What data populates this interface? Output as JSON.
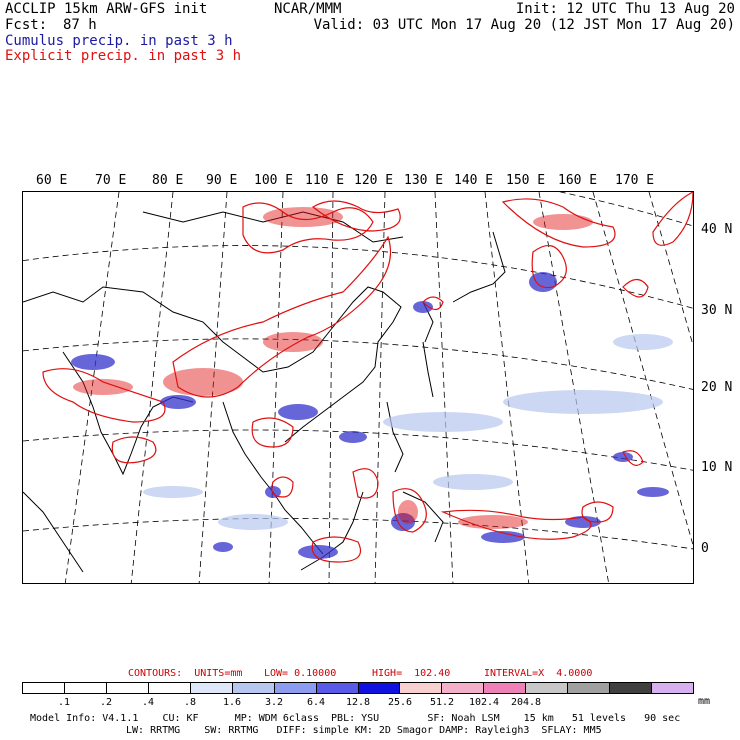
{
  "header": {
    "model": "ACCLIP 15km ARW-GFS init",
    "fcst_label": "Fcst:",
    "fcst_value": "87 h",
    "center": "NCAR/MMM",
    "init": "Init: 12 UTC Thu 13 Aug 20",
    "valid": "Valid: 03 UTC Mon 17 Aug 20 (12 JST Mon 17 Aug 20)",
    "legend_cumulus": "Cumulus precip. in past 3 h",
    "legend_explicit": "Explicit precip. in past 3 h",
    "legend_cumulus_color": "#1a1aa0",
    "legend_explicit_color": "#e01010"
  },
  "map": {
    "lon_labels": [
      "60 E",
      "70 E",
      "80 E",
      "90 E",
      "100 E",
      "110 E",
      "120 E",
      "130 E",
      "140 E",
      "150 E",
      "160 E",
      "170 E"
    ],
    "lat_labels": [
      "40 N",
      "30 N",
      "20 N",
      "10 N",
      "0"
    ]
  },
  "contours_line": {
    "contours": "CONTOURS:  UNITS=mm",
    "low": "LOW= 0.10000",
    "high": "HIGH=  102.40",
    "interval": "INTERVAL=X  4.0000",
    "color": "#cc0000"
  },
  "colorbar": {
    "colors": [
      "#ffffff",
      "#ffffff",
      "#ffffff",
      "#ffffff",
      "#dfe8f8",
      "#b7c7f0",
      "#8c9cf0",
      "#5a5ae8",
      "#1010e0",
      "#f8d0d0",
      "#f4b0c8",
      "#f080b8",
      "#c8c8c8",
      "#a0a0a0",
      "#404040",
      "#d8b0f0"
    ],
    "ticks": [
      ".1",
      ".2",
      ".4",
      ".8",
      "1.6",
      "3.2",
      "6.4",
      "12.8",
      "25.6",
      "51.2",
      "102.4",
      "204.8"
    ],
    "units": "mm"
  },
  "footer": {
    "line1": "Model Info: V4.1.1    CU: KF      MP: WDM 6class  PBL: YSU        SF: Noah LSM    15 km   51 levels   90 sec",
    "line2": "LW: RRTMG    SW: RRTMG   DIFF: simple KM: 2D Smagor DAMP: Rayleigh3  SFLAY: MM5"
  }
}
